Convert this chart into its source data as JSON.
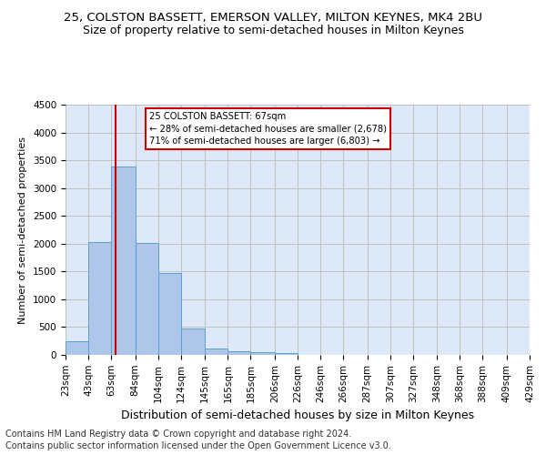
{
  "title1": "25, COLSTON BASSETT, EMERSON VALLEY, MILTON KEYNES, MK4 2BU",
  "title2": "Size of property relative to semi-detached houses in Milton Keynes",
  "xlabel": "Distribution of semi-detached houses by size in Milton Keynes",
  "ylabel": "Number of semi-detached properties",
  "footer1": "Contains HM Land Registry data © Crown copyright and database right 2024.",
  "footer2": "Contains public sector information licensed under the Open Government Licence v3.0.",
  "annotation_title": "25 COLSTON BASSETT: 67sqm",
  "annotation_line1": "← 28% of semi-detached houses are smaller (2,678)",
  "annotation_line2": "71% of semi-detached houses are larger (6,803) →",
  "property_sqm": 67,
  "bar_left_edges": [
    23,
    43,
    63,
    84,
    104,
    124,
    145,
    165,
    185,
    206,
    226,
    246,
    266,
    287,
    307,
    327,
    348,
    368,
    388,
    409
  ],
  "bar_heights": [
    250,
    2030,
    3380,
    2010,
    1470,
    480,
    110,
    70,
    55,
    40,
    0,
    0,
    0,
    0,
    0,
    0,
    0,
    0,
    0,
    0
  ],
  "bar_widths": [
    20,
    20,
    21,
    20,
    20,
    21,
    20,
    20,
    21,
    20,
    20,
    20,
    21,
    20,
    20,
    21,
    20,
    20,
    21,
    20
  ],
  "tick_labels": [
    "23sqm",
    "43sqm",
    "63sqm",
    "84sqm",
    "104sqm",
    "124sqm",
    "145sqm",
    "165sqm",
    "185sqm",
    "206sqm",
    "226sqm",
    "246sqm",
    "266sqm",
    "287sqm",
    "307sqm",
    "327sqm",
    "348sqm",
    "368sqm",
    "388sqm",
    "409sqm",
    "429sqm"
  ],
  "tick_positions": [
    23,
    43,
    63,
    84,
    104,
    124,
    145,
    165,
    185,
    206,
    226,
    246,
    266,
    287,
    307,
    327,
    348,
    368,
    388,
    409,
    429
  ],
  "bar_color": "#aec6e8",
  "bar_edge_color": "#5a9fd4",
  "vline_x": 67,
  "vline_color": "#cc0000",
  "ylim": [
    0,
    4500
  ],
  "xlim": [
    23,
    429
  ],
  "annotation_box_color": "#ffffff",
  "annotation_box_edge": "#cc0000",
  "bg_color": "#dde8f8",
  "grid_color": "#bbbbbb",
  "title1_fontsize": 9.5,
  "title2_fontsize": 9,
  "ylabel_fontsize": 8,
  "xlabel_fontsize": 9,
  "tick_fontsize": 7.5,
  "footer_fontsize": 7
}
